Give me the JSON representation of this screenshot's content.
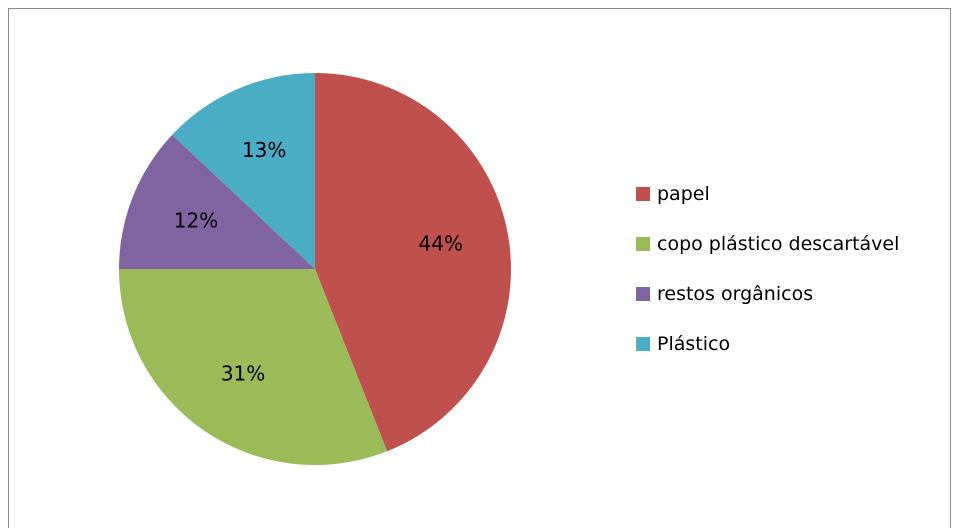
{
  "chart_data": {
    "type": "pie",
    "categories": [
      "papel",
      "copo plástico descartável",
      "restos orgânicos",
      "Plástico"
    ],
    "values": [
      44,
      31,
      12,
      13
    ],
    "labels": [
      "44%",
      "31%",
      "12%",
      "13%"
    ],
    "colors": [
      "#c0504d",
      "#9bbb59",
      "#8064a2",
      "#4bacc6"
    ],
    "title": "",
    "legend_position": "right",
    "start_angle": "top, clockwise"
  }
}
